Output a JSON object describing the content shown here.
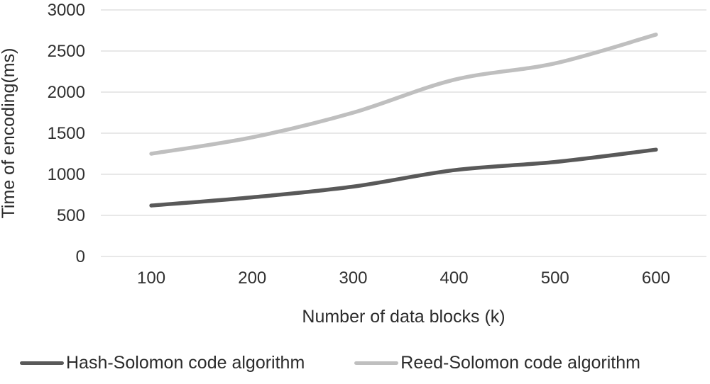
{
  "chart_data": {
    "type": "line",
    "title": "",
    "xlabel": "Number of data blocks (k)",
    "ylabel": "Time of encoding(ms)",
    "x": [
      100,
      200,
      300,
      400,
      500,
      600
    ],
    "xtick_labels": [
      "100",
      "200",
      "300",
      "400",
      "500",
      "600"
    ],
    "ytick_labels": [
      "0",
      "500",
      "1000",
      "1500",
      "2000",
      "2500",
      "3000"
    ],
    "yticks": [
      0,
      500,
      1000,
      1500,
      2000,
      2500,
      3000
    ],
    "ylim": [
      0,
      3000
    ],
    "grid": "horizontal",
    "legend_position": "bottom",
    "series": [
      {
        "name": "Hash-Solomon code algorithm",
        "values": [
          620,
          720,
          850,
          1050,
          1150,
          1300
        ],
        "color": "#595959"
      },
      {
        "name": "Reed-Solomon code algorithm",
        "values": [
          1250,
          1450,
          1750,
          2150,
          2350,
          2700
        ],
        "color": "#bfbfbf"
      }
    ],
    "colors": {
      "gridline": "#d9d9d9",
      "text": "#303030",
      "background": "#ffffff"
    }
  }
}
